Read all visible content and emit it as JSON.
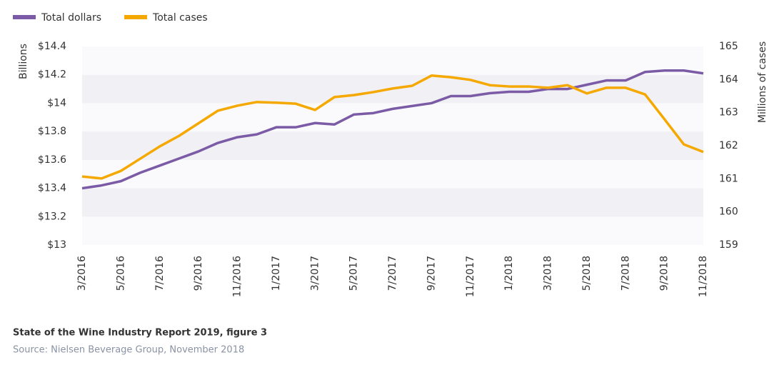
{
  "chart_data": {
    "type": "line",
    "categories": [
      "3/2016",
      null,
      "5/2016",
      null,
      "7/2016",
      null,
      "9/2016",
      null,
      "11/2016",
      null,
      "1/2017",
      null,
      "3/2017",
      null,
      "5/2017",
      null,
      "7/2017",
      null,
      "9/2017",
      null,
      "11/2017",
      null,
      "1/2018",
      null,
      "3/2018",
      null,
      "5/2018",
      null,
      "7/2018",
      null,
      "9/2018",
      null,
      "11/2018"
    ],
    "series": [
      {
        "name": "Total dollars",
        "color": "#7b5aa6",
        "axis": "y",
        "values": [
          13.4,
          13.42,
          13.45,
          13.51,
          13.56,
          13.61,
          13.66,
          13.72,
          13.76,
          13.78,
          13.83,
          13.83,
          13.86,
          13.85,
          13.92,
          13.93,
          13.96,
          13.98,
          14.0,
          14.05,
          14.05,
          14.07,
          14.08,
          14.08,
          14.1,
          14.1,
          14.13,
          14.16,
          14.16,
          14.22,
          14.23,
          14.23,
          14.21
        ]
      },
      {
        "name": "Total cases",
        "color": "#f5a800",
        "axis": "y2",
        "values": [
          161.07,
          161.01,
          161.24,
          161.61,
          161.98,
          162.3,
          162.68,
          163.06,
          163.21,
          163.32,
          163.3,
          163.27,
          163.08,
          163.47,
          163.53,
          163.62,
          163.73,
          163.81,
          164.12,
          164.07,
          163.99,
          163.83,
          163.79,
          163.79,
          163.75,
          163.83,
          163.58,
          163.75,
          163.75,
          163.55,
          162.8,
          162.04,
          161.81
        ]
      }
    ],
    "y_label": "Billions",
    "y2_label": "Millions of cases",
    "ylim": [
      13,
      14.4
    ],
    "yticks": [
      {
        "value": 13,
        "label": "$13"
      },
      {
        "value": 13.2,
        "label": "$13.2"
      },
      {
        "value": 13.4,
        "label": "$13.4"
      },
      {
        "value": 13.6,
        "label": "$13.6"
      },
      {
        "value": 13.8,
        "label": "$13.8"
      },
      {
        "value": 14,
        "label": "$14"
      },
      {
        "value": 14.2,
        "label": "$14.2"
      },
      {
        "value": 14.4,
        "label": "$14.4"
      }
    ],
    "y2lim": [
      159,
      165
    ],
    "y2ticks": [
      159,
      160,
      161,
      162,
      163,
      164,
      165
    ],
    "grid": "bands",
    "legend": "top-left",
    "caption": "State of the Wine Industry Report 2019, figure 3",
    "source": "Source: Nielsen Beverage Group, November 2018"
  }
}
